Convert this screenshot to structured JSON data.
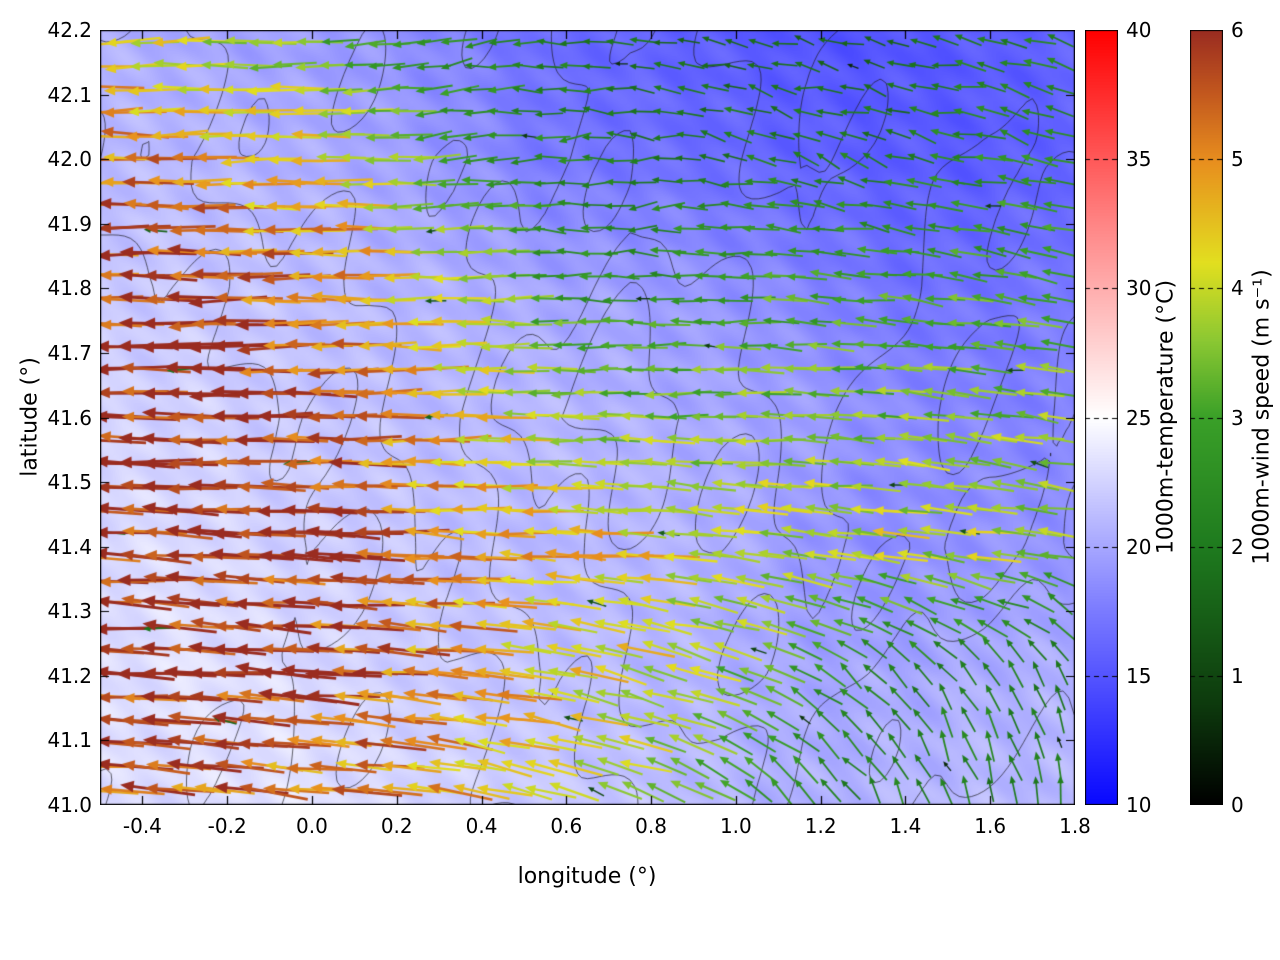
{
  "figure": {
    "background": "#ffffff"
  },
  "chart_data": {
    "type": "heatmap",
    "subtype": "vector-field-over-temperature-with-terrain-contours",
    "title": "",
    "xlabel": "longitude (°)",
    "ylabel": "latitude (°)",
    "xlim": [
      -0.5,
      1.8
    ],
    "ylim": [
      41.0,
      42.2
    ],
    "x_ticks": [
      -0.4,
      -0.2,
      0.0,
      0.2,
      0.4,
      0.6,
      0.8,
      1.0,
      1.2,
      1.4,
      1.6,
      1.8
    ],
    "y_ticks": [
      41.0,
      41.1,
      41.2,
      41.3,
      41.4,
      41.5,
      41.6,
      41.7,
      41.8,
      41.9,
      42.0,
      42.1,
      42.2
    ],
    "grid": "on-frame-ticks-only",
    "colorbars": [
      {
        "name": "temperature",
        "label": "1000m-temperature (°C)",
        "range": [
          10,
          40
        ],
        "ticks": [
          10,
          15,
          20,
          25,
          30,
          35,
          40
        ],
        "stops": [
          [
            0,
            "#0808ff"
          ],
          [
            0.25,
            "#7b7bff"
          ],
          [
            0.5,
            "#ffffff"
          ],
          [
            0.75,
            "#ff8585"
          ],
          [
            1,
            "#ff0000"
          ]
        ]
      },
      {
        "name": "wind-speed",
        "label": "1000m-wind speed (m s⁻¹)",
        "range": [
          0,
          6
        ],
        "ticks": [
          0,
          1,
          2,
          3,
          4,
          5,
          6
        ],
        "stops": [
          [
            0,
            "#000000"
          ],
          [
            0.13,
            "#0d3a0d"
          ],
          [
            0.33,
            "#1e7a1e"
          ],
          [
            0.5,
            "#3aa028"
          ],
          [
            0.6,
            "#8cc832"
          ],
          [
            0.7,
            "#e2df1f"
          ],
          [
            0.83,
            "#e88f1e"
          ],
          [
            0.92,
            "#c2571e"
          ],
          [
            1,
            "#9a2c20"
          ]
        ]
      }
    ],
    "field_grid": {
      "nx": 12,
      "ny": 7,
      "lon_range": [
        -0.5,
        1.8
      ],
      "lat_rows_north_to_south": [
        42.2,
        41.0
      ]
    },
    "temperature_c": [
      [
        20.5,
        20,
        19.5,
        19,
        18,
        16.5,
        16,
        15.5,
        15,
        15,
        15.5,
        16
      ],
      [
        21,
        21,
        20.5,
        20,
        19,
        17.5,
        17,
        16.5,
        16,
        15.5,
        15.5,
        16
      ],
      [
        22,
        22,
        21.5,
        21,
        20.5,
        20,
        19.5,
        19,
        18,
        17,
        17,
        17.5
      ],
      [
        22.5,
        22.5,
        22,
        21.5,
        21,
        21,
        20.5,
        20,
        19.5,
        18.5,
        18,
        18
      ],
      [
        23,
        23,
        22.5,
        22,
        21.5,
        21,
        21,
        20.5,
        19,
        18.5,
        19,
        19
      ],
      [
        23,
        23.5,
        23,
        22.5,
        22,
        21.5,
        21,
        20.5,
        20,
        20,
        20.5,
        20.5
      ],
      [
        23,
        23,
        23.5,
        23,
        22.5,
        22,
        21.5,
        21,
        20.5,
        21,
        21,
        21
      ]
    ],
    "wind_u_ms": [
      [
        -4.5,
        -4,
        -3.5,
        -3,
        -2.5,
        -2,
        -2,
        -1.5,
        -1.5,
        -1.5,
        -2,
        -2
      ],
      [
        -5,
        -5,
        -4.5,
        -4,
        -3,
        -2.5,
        -2,
        -2,
        -2,
        -2,
        -2.5,
        -2.5
      ],
      [
        -5.8,
        -5.8,
        -5.5,
        -5,
        -4,
        -3,
        -2.5,
        -3,
        -3,
        -3,
        -3,
        -3
      ],
      [
        -6,
        -6,
        -5.8,
        -5.5,
        -4.5,
        -4,
        -3.5,
        -3.5,
        -3.5,
        -3.5,
        -3.5,
        -3.5
      ],
      [
        -6,
        -6,
        -6,
        -5.5,
        -5,
        -4.5,
        -4.5,
        -4,
        -4,
        -4,
        -4,
        -3.5
      ],
      [
        -6,
        -6,
        -5.8,
        -5.5,
        -5,
        -4.5,
        -4,
        -3.5,
        -2.5,
        -1.5,
        -1,
        -0.5
      ],
      [
        -5.5,
        -5.5,
        -5,
        -5,
        -4.5,
        -4,
        -3.5,
        -2.5,
        -1.5,
        -0.8,
        -0.5,
        -0.3
      ]
    ],
    "wind_v_ms": [
      [
        0,
        0,
        0,
        -0.3,
        -0.3,
        0,
        0.3,
        0.5,
        0.3,
        0.5,
        0.5,
        0.8
      ],
      [
        0,
        0,
        0,
        0,
        -0.3,
        0,
        0,
        0.3,
        0.5,
        0.5,
        0.5,
        0.5
      ],
      [
        0,
        0,
        0,
        0,
        0,
        0,
        0,
        0,
        0.3,
        0.3,
        0.5,
        0.5
      ],
      [
        0,
        0,
        0,
        0,
        0,
        0,
        0,
        0,
        0,
        0.3,
        0.5,
        0.5
      ],
      [
        0.3,
        0.3,
        0.3,
        0.3,
        0.3,
        0.3,
        0.3,
        0.5,
        0.5,
        0.5,
        0.5,
        0.5
      ],
      [
        0.3,
        0.3,
        0.5,
        0.5,
        0.5,
        0.8,
        1,
        1.2,
        1.5,
        1.5,
        1.8,
        2
      ],
      [
        0.5,
        0.5,
        0.5,
        0.5,
        0.8,
        1,
        1.2,
        1.5,
        1.8,
        2,
        2,
        2
      ]
    ],
    "elevation_m": [
      [
        420,
        440,
        520,
        540,
        500,
        540,
        580,
        540,
        520,
        580,
        620,
        600
      ],
      [
        380,
        460,
        540,
        500,
        470,
        520,
        640,
        580,
        540,
        620,
        660,
        620
      ],
      [
        300,
        350,
        400,
        430,
        510,
        630,
        710,
        650,
        570,
        630,
        710,
        690
      ],
      [
        250,
        300,
        330,
        390,
        530,
        710,
        770,
        710,
        610,
        690,
        730,
        710
      ],
      [
        230,
        270,
        310,
        350,
        490,
        610,
        690,
        730,
        650,
        710,
        750,
        710
      ],
      [
        270,
        310,
        330,
        370,
        430,
        530,
        650,
        710,
        690,
        650,
        610,
        570
      ],
      [
        310,
        330,
        350,
        390,
        410,
        490,
        570,
        630,
        610,
        570,
        530,
        490
      ]
    ],
    "contour_levels_m": [
      350,
      450,
      550,
      650,
      720
    ]
  }
}
